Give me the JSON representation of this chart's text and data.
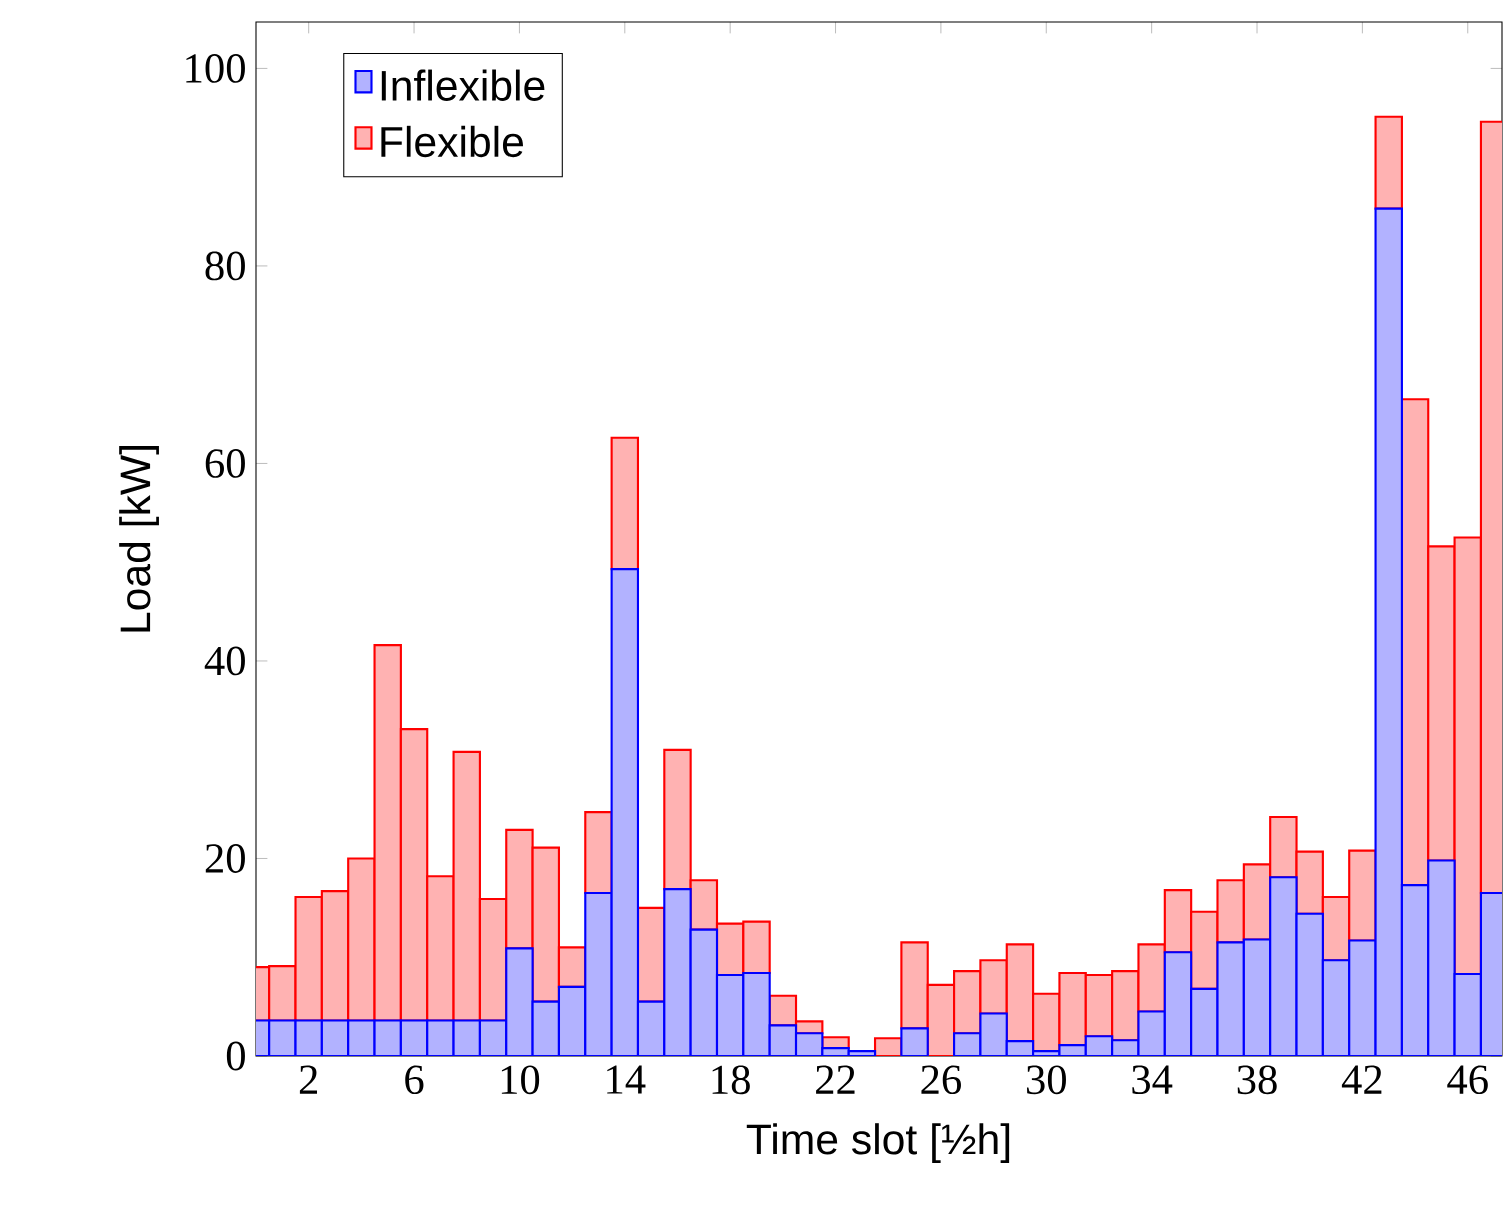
{
  "chart_data": {
    "type": "bar",
    "stacked": true,
    "xlabel": "Time slot [½h]",
    "ylabel": "Load [kW]",
    "x": [
      0,
      1,
      2,
      3,
      4,
      5,
      6,
      7,
      8,
      9,
      10,
      11,
      12,
      13,
      14,
      15,
      16,
      17,
      18,
      19,
      20,
      21,
      22,
      23,
      24,
      25,
      26,
      27,
      28,
      29,
      30,
      31,
      32,
      33,
      34,
      35,
      36,
      37,
      38,
      39,
      40,
      41,
      42,
      43,
      44,
      45,
      46,
      47
    ],
    "xlim": [
      0,
      47.3
    ],
    "xticks": [
      2,
      6,
      10,
      14,
      18,
      22,
      26,
      30,
      34,
      38,
      42,
      46
    ],
    "ylim": [
      0,
      104.7
    ],
    "yticks": [
      0,
      20,
      40,
      60,
      80,
      100
    ],
    "legend": "top left",
    "grid": false,
    "series": [
      {
        "name": "Inflexible",
        "color": "#0000ff",
        "values": [
          3.6,
          3.6,
          3.6,
          3.6,
          3.6,
          3.6,
          3.6,
          3.6,
          3.6,
          3.6,
          10.9,
          5.5,
          7.0,
          16.5,
          49.3,
          5.5,
          16.9,
          12.8,
          8.2,
          8.4,
          3.1,
          2.3,
          0.8,
          0.5,
          0,
          2.8,
          0,
          2.3,
          4.3,
          1.5,
          0.5,
          1.1,
          2.0,
          1.6,
          4.5,
          10.5,
          6.8,
          11.5,
          11.8,
          18.1,
          14.4,
          9.7,
          11.7,
          85.8,
          17.3,
          19.8,
          8.3,
          16.5
        ]
      },
      {
        "name": "Flexible",
        "color": "#ff0000",
        "values": [
          5.4,
          5.5,
          12.5,
          13.1,
          16.4,
          38.0,
          29.5,
          14.6,
          27.2,
          12.3,
          12.0,
          15.6,
          4.0,
          8.2,
          13.3,
          9.5,
          14.1,
          5.0,
          5.2,
          5.2,
          3.0,
          1.2,
          1.1,
          0,
          1.8,
          8.7,
          7.2,
          6.3,
          5.4,
          9.8,
          5.8,
          7.3,
          6.2,
          7.0,
          6.8,
          6.3,
          7.8,
          6.3,
          7.6,
          6.1,
          6.3,
          6.4,
          9.1,
          9.3,
          49.2,
          31.8,
          44.2,
          78.1
        ]
      }
    ]
  }
}
